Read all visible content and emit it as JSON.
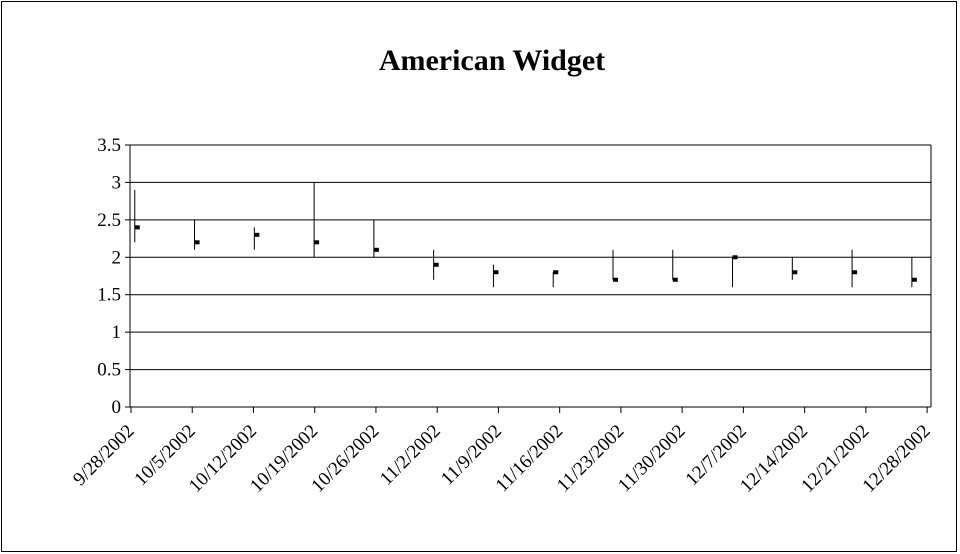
{
  "chart_data": {
    "type": "stock",
    "title": "American Widget",
    "xlabel": "",
    "ylabel": "",
    "ylim": [
      0,
      3.5
    ],
    "yticks": [
      0,
      0.5,
      1,
      1.5,
      2,
      2.5,
      3,
      3.5
    ],
    "ytick_labels": [
      "0",
      "0.5",
      "1",
      "1.5",
      "2",
      "2.5",
      "3",
      "3.5"
    ],
    "grid": true,
    "legend": "none",
    "categories": [
      "9/28/2002",
      "10/5/2002",
      "10/12/2002",
      "10/19/2002",
      "10/26/2002",
      "11/2/2002",
      "11/9/2002",
      "11/16/2002",
      "11/23/2002",
      "11/30/2002",
      "12/7/2002",
      "12/14/2002",
      "12/21/2002",
      "12/28/2002"
    ],
    "high": [
      2.9,
      2.5,
      2.4,
      3.0,
      2.5,
      2.1,
      1.9,
      1.8,
      2.1,
      2.1,
      2.0,
      2.0,
      2.1,
      2.0
    ],
    "low": [
      2.2,
      2.1,
      2.1,
      2.0,
      2.0,
      1.7,
      1.6,
      1.6,
      1.7,
      1.7,
      1.6,
      1.7,
      1.6,
      1.6
    ],
    "close": [
      2.4,
      2.2,
      2.3,
      2.2,
      2.1,
      1.9,
      1.8,
      1.8,
      1.7,
      1.7,
      2.0,
      1.8,
      1.8,
      1.7
    ]
  }
}
